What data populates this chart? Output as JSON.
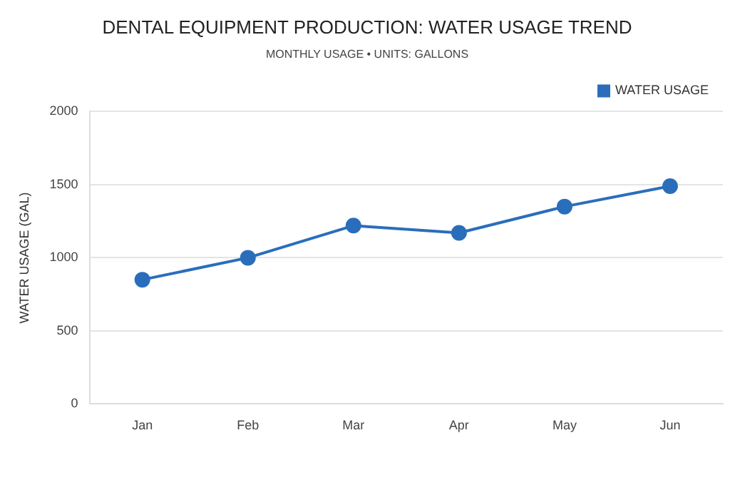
{
  "chart_data": {
    "type": "line",
    "title": "DENTAL EQUIPMENT PRODUCTION: WATER USAGE TREND",
    "subtitle": "MONTHLY USAGE • UNITS: GALLONS",
    "ylabel": "WATER USAGE (GAL)",
    "categories": [
      "Jan",
      "Feb",
      "Mar",
      "Apr",
      "May",
      "Jun"
    ],
    "series": [
      {
        "name": "WATER USAGE",
        "color": "#2a6ebb",
        "values": [
          850,
          1000,
          1220,
          1170,
          1350,
          1490
        ]
      }
    ],
    "ylim": [
      0,
      2000
    ],
    "yticks": [
      0,
      500,
      1000,
      1500,
      2000
    ],
    "grid": "y",
    "legend": "top right",
    "marker": "circle",
    "line_style": "solid"
  }
}
